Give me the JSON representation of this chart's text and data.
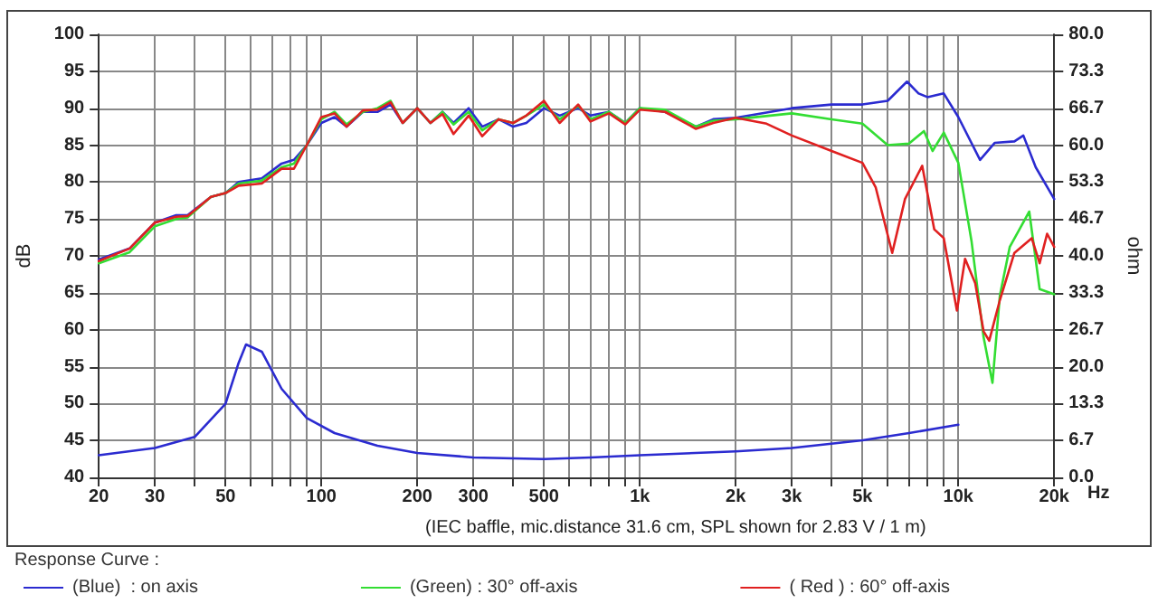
{
  "chart_data": {
    "type": "line",
    "ylabel": "dB",
    "y2label": "ohm",
    "legend_title": "Response Curve :",
    "annotations": [
      "(IEC baffle, mic.distance 31.6 cm, SPL shown for 2.83 V / 1 m)"
    ],
    "log": "x",
    "grid": true,
    "legend": "bottom",
    "xlim": [
      20,
      20000
    ],
    "xticks": [
      20,
      30,
      {
        "value": 40,
        "label": null
      },
      50,
      {
        "value": 60,
        "label": null
      },
      {
        "value": 70,
        "label": null
      },
      {
        "value": 80,
        "label": null
      },
      {
        "value": 90,
        "label": null
      },
      100,
      200,
      300,
      {
        "value": 400,
        "label": null
      },
      500,
      {
        "value": 600,
        "label": null
      },
      {
        "value": 700,
        "label": null
      },
      {
        "value": 800,
        "label": null
      },
      {
        "value": 900,
        "label": null
      },
      {
        "value": 1000,
        "label": "1k"
      },
      {
        "value": 2000,
        "label": "2k"
      },
      {
        "value": 3000,
        "label": "3k"
      },
      {
        "value": 4000,
        "label": null
      },
      {
        "value": 5000,
        "label": "5k"
      },
      {
        "value": 6000,
        "label": null
      },
      {
        "value": 7000,
        "label": null
      },
      {
        "value": 8000,
        "label": null
      },
      {
        "value": 9000,
        "label": null
      },
      {
        "value": 10000,
        "label": "10k"
      },
      {
        "value": 20000,
        "label": "20k"
      }
    ],
    "xlabel": "Hz",
    "ylim": [
      40,
      100
    ],
    "yticks": [
      40,
      45,
      50,
      55,
      60,
      65,
      70,
      75,
      80,
      85,
      90,
      95,
      100
    ],
    "y2lim": [
      0,
      80
    ],
    "y2ticks": [
      {
        "value": 0,
        "label": "0.0"
      },
      {
        "value": 6.667,
        "label": "6.7"
      },
      {
        "value": 13.333,
        "label": "13.3"
      },
      {
        "value": 20,
        "label": "20.0"
      },
      {
        "value": 26.667,
        "label": "26.7"
      },
      {
        "value": 33.333,
        "label": "33.3"
      },
      {
        "value": 40,
        "label": "40.0"
      },
      {
        "value": 46.667,
        "label": "46.7"
      },
      {
        "value": 53.333,
        "label": "53.3"
      },
      {
        "value": 60,
        "label": "60.0"
      },
      {
        "value": 66.667,
        "label": "66.7"
      },
      {
        "value": 73.333,
        "label": "73.3"
      },
      {
        "value": 80,
        "label": "80.0"
      }
    ],
    "series": [
      {
        "name": "(Blue)  : on axis",
        "color": "#2b2bd0",
        "x": [
          20,
          25,
          30,
          35,
          38,
          45,
          50,
          55,
          65,
          75,
          82,
          90,
          100,
          110,
          120,
          135,
          150,
          165,
          180,
          200,
          220,
          240,
          260,
          290,
          320,
          360,
          400,
          440,
          500,
          560,
          640,
          700,
          800,
          900,
          1000,
          1200,
          1500,
          1700,
          2000,
          3000,
          4000,
          5000,
          6000,
          6900,
          7500,
          8000,
          9000,
          10000,
          11700,
          13000,
          15000,
          16000,
          17500,
          20000
        ],
        "values": [
          69.5,
          71,
          74.5,
          75.5,
          75.5,
          78,
          78.5,
          80,
          80.5,
          82.5,
          83,
          85,
          88,
          88.8,
          87.5,
          89.5,
          89.5,
          90.5,
          88,
          90,
          88,
          89.5,
          88,
          90,
          87.5,
          88.5,
          87.5,
          88,
          90,
          89,
          90,
          89,
          89.5,
          88,
          90,
          89.5,
          87.5,
          88.5,
          88.7,
          90,
          90.5,
          90.5,
          91,
          93.6,
          92,
          91.5,
          92,
          88.8,
          83,
          85.3,
          85.5,
          86.3,
          82,
          77.7
        ]
      },
      {
        "name": "(Green) : 30° off-axis",
        "color": "#33dd33",
        "x": [
          20,
          25,
          30,
          35,
          38,
          45,
          50,
          55,
          65,
          75,
          82,
          90,
          100,
          110,
          120,
          135,
          150,
          165,
          180,
          200,
          220,
          240,
          260,
          290,
          320,
          360,
          400,
          440,
          500,
          560,
          640,
          700,
          800,
          900,
          1000,
          1200,
          1500,
          1700,
          2000,
          3000,
          4000,
          5000,
          6000,
          7000,
          7800,
          8300,
          9000,
          10000,
          11000,
          12000,
          12800,
          13500,
          14500,
          16700,
          18000,
          20000
        ],
        "values": [
          69,
          70.5,
          74,
          75,
          75.2,
          78,
          78.5,
          79.8,
          80.2,
          82,
          82.5,
          85,
          88.5,
          89.5,
          87.8,
          89.5,
          90,
          91,
          88,
          90,
          88,
          89.5,
          87.8,
          89.5,
          87,
          88.5,
          88,
          89,
          90.5,
          88.5,
          90.3,
          88.5,
          89.5,
          88,
          90,
          89.8,
          87.5,
          88.3,
          88.5,
          89.3,
          88.5,
          87.9,
          85,
          85.2,
          86.9,
          84.2,
          86.7,
          82.6,
          72,
          59,
          52.8,
          64.6,
          71.2,
          76,
          65.5,
          64.8
        ]
      },
      {
        "name": "( Red ) : 60° off-axis",
        "color": "#e02020",
        "x": [
          20,
          25,
          30,
          35,
          38,
          45,
          50,
          55,
          65,
          75,
          82,
          90,
          100,
          110,
          120,
          135,
          150,
          165,
          180,
          200,
          220,
          240,
          260,
          290,
          320,
          360,
          400,
          440,
          500,
          560,
          640,
          700,
          800,
          900,
          1000,
          1200,
          1500,
          1700,
          2000,
          2500,
          3000,
          4000,
          5000,
          5500,
          6200,
          6800,
          7700,
          8400,
          9000,
          9900,
          10500,
          11300,
          12000,
          12500,
          13500,
          15000,
          17000,
          18000,
          19000,
          20000
        ],
        "values": [
          69.3,
          71,
          74.5,
          75.3,
          75.4,
          78,
          78.5,
          79.5,
          79.8,
          81.8,
          81.8,
          85,
          88.8,
          89.3,
          87.5,
          89.7,
          89.8,
          90.8,
          88,
          90,
          88,
          89.2,
          86.5,
          89,
          86.2,
          88.5,
          88,
          89,
          91,
          88,
          90.5,
          88.2,
          89.3,
          87.8,
          89.8,
          89.5,
          87.2,
          88,
          88.7,
          87.9,
          86.3,
          84.2,
          82.6,
          79.3,
          70.4,
          77.7,
          82.2,
          73.6,
          72.4,
          62.6,
          69.6,
          66.3,
          59.8,
          58.5,
          64,
          70.4,
          72.4,
          69,
          73,
          71.2
        ]
      },
      {
        "color": "#2b2bd0",
        "axis": "y2",
        "x": [
          20,
          30,
          40,
          50,
          55,
          58,
          65,
          75,
          90,
          110,
          150,
          200,
          300,
          500,
          700,
          1000,
          2000,
          3000,
          5000,
          7000,
          10000
        ],
        "values": [
          4,
          5.3,
          7.3,
          13.3,
          20.7,
          24,
          22.7,
          16,
          10.7,
          8,
          5.7,
          4.4,
          3.6,
          3.3,
          3.6,
          4,
          4.7,
          5.3,
          6.7,
          8,
          9.5
        ]
      }
    ]
  }
}
